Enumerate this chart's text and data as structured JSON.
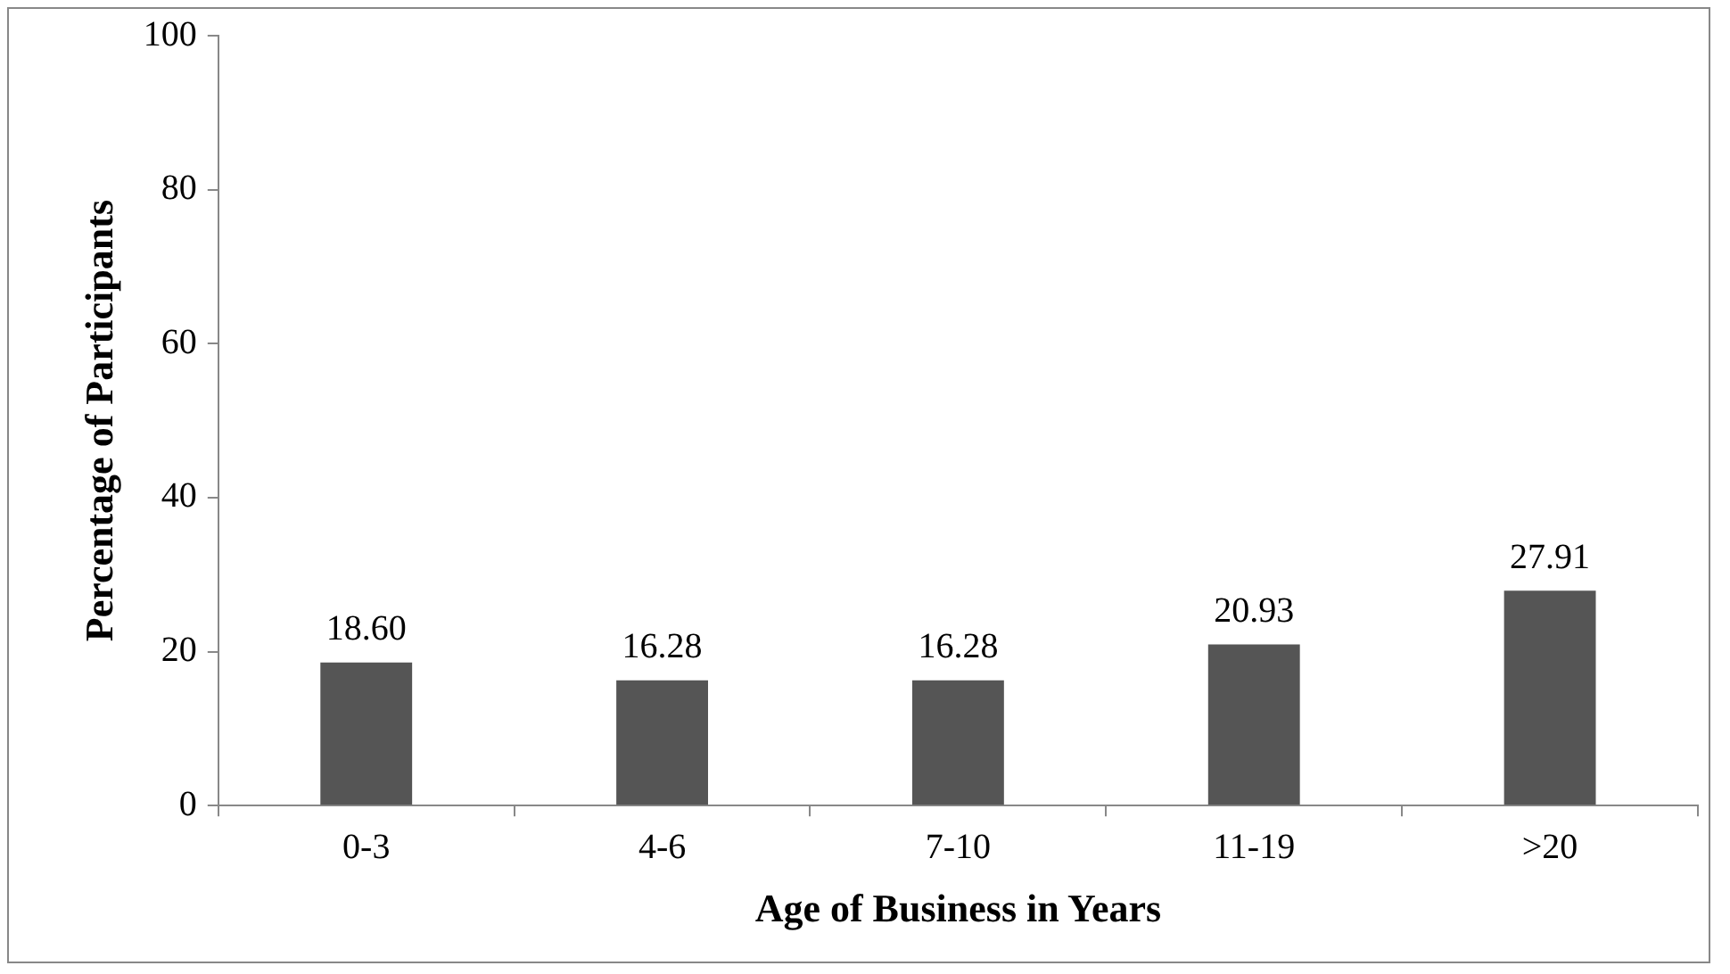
{
  "chart_data": {
    "type": "bar",
    "xlabel": "Age of Business in Years",
    "ylabel": "Percentage of Participants",
    "categories": [
      "0-3",
      "4-6",
      "7-10",
      "11-19",
      ">20"
    ],
    "values": [
      18.6,
      16.28,
      16.28,
      20.93,
      27.91
    ],
    "value_labels": [
      "18.60",
      "16.28",
      "16.28",
      "20.93",
      "27.91"
    ],
    "color": "#555555",
    "ylim": [
      0,
      100
    ],
    "yticks": [
      0,
      20,
      40,
      60,
      80,
      100
    ],
    "grid": false,
    "legend": false
  }
}
